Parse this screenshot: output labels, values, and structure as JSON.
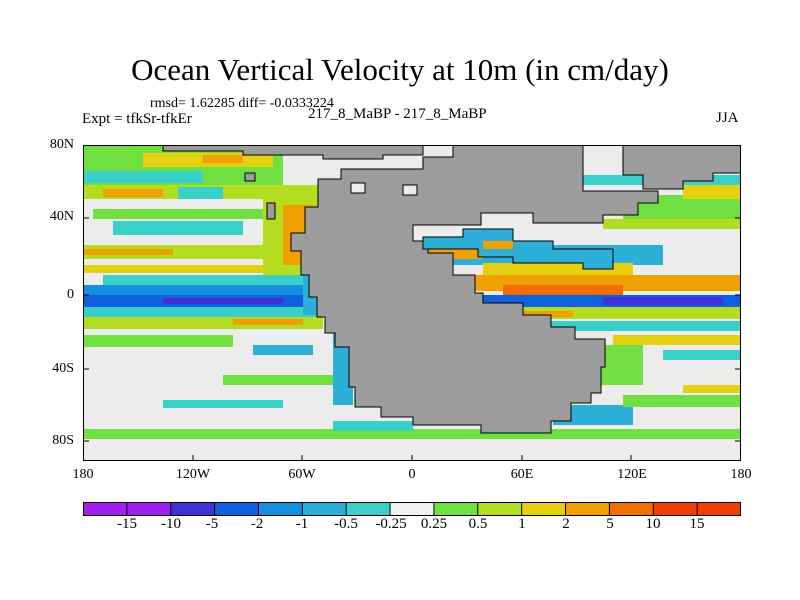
{
  "title": "Ocean Vertical Velocity at 10m (in cm/day)",
  "stats": "rmsd= 1.62285 diff= -0.0333224",
  "experiment": "Expt = tfkSr-tfkEr",
  "runs": "217_8_MaBP - 217_8_MaBP",
  "season": "JJA",
  "y_ticks": [
    "80N",
    "40N",
    "0",
    "40S",
    "80S"
  ],
  "x_ticks": [
    "180",
    "120W",
    "60W",
    "0",
    "60E",
    "120E",
    "180"
  ],
  "colorbar": {
    "labels": [
      "-15",
      "-10",
      "-5",
      "-2",
      "-1",
      "-0.5",
      "-0.25",
      "0.25",
      "0.5",
      "1",
      "2",
      "5",
      "10",
      "15"
    ],
    "colors": [
      "#a020f0",
      "#4030d8",
      "#1060e0",
      "#1490e0",
      "#2cb0d8",
      "#38d0c8",
      "#f0f0f0",
      "#70e040",
      "#b4dc20",
      "#e4d010",
      "#f0a000",
      "#f07000",
      "#f04000"
    ]
  },
  "map_colors": {
    "ocean": "#ececec",
    "land": "#9c9c9c",
    "coast": "#000000"
  }
}
